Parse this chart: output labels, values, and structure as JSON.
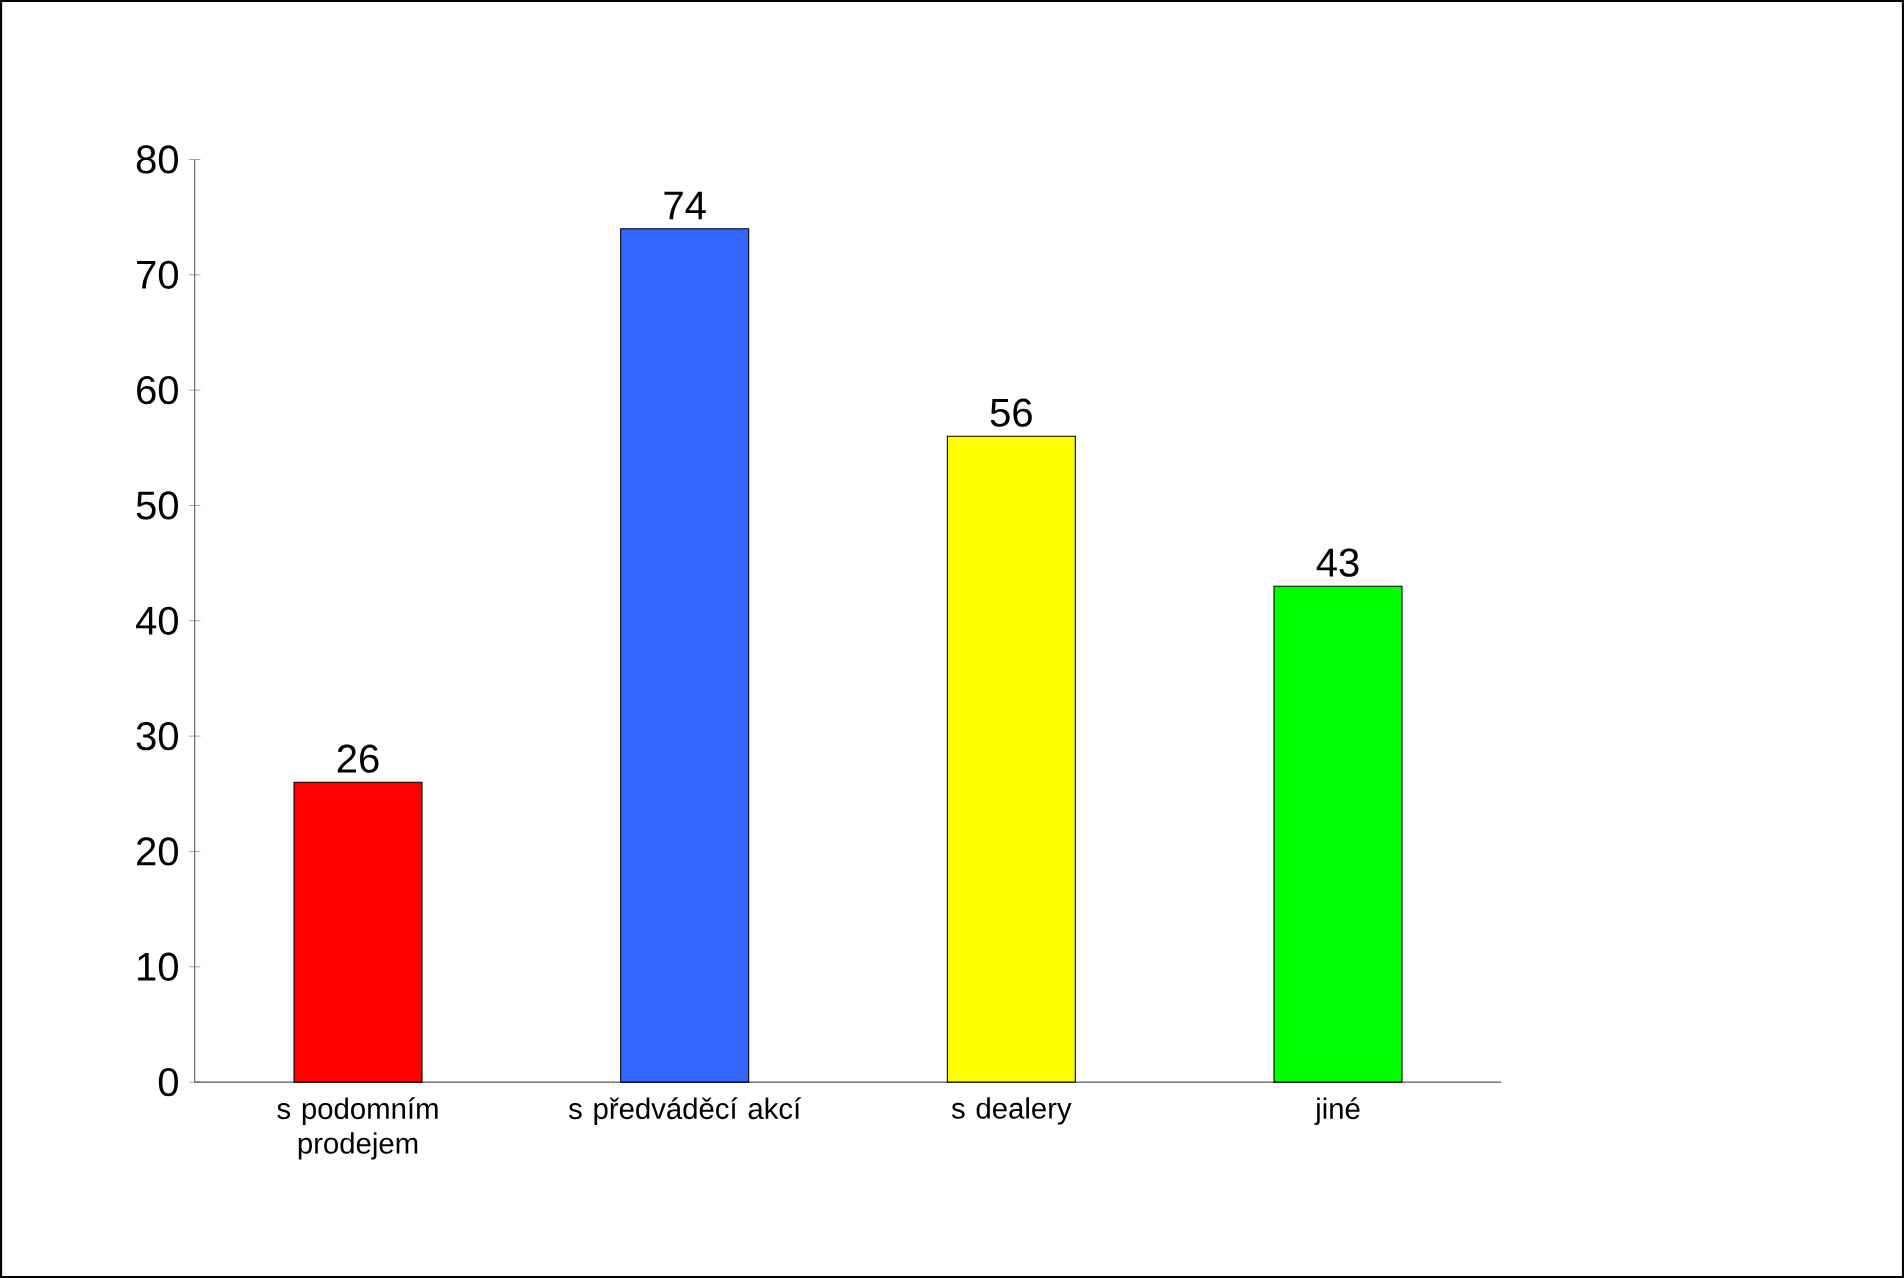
{
  "chart_data": {
    "type": "bar",
    "categories": [
      "s podomním prodejem",
      "s předváděcí akcí",
      "s dealery",
      "jiné"
    ],
    "values": [
      26,
      74,
      56,
      43
    ],
    "colors": [
      "#ff0000",
      "#3366ff",
      "#ffff00",
      "#00ff00"
    ],
    "ylim": [
      0,
      80
    ],
    "yticks": [
      0,
      10,
      20,
      30,
      40,
      50,
      60,
      70,
      80
    ],
    "data_labels": true
  }
}
